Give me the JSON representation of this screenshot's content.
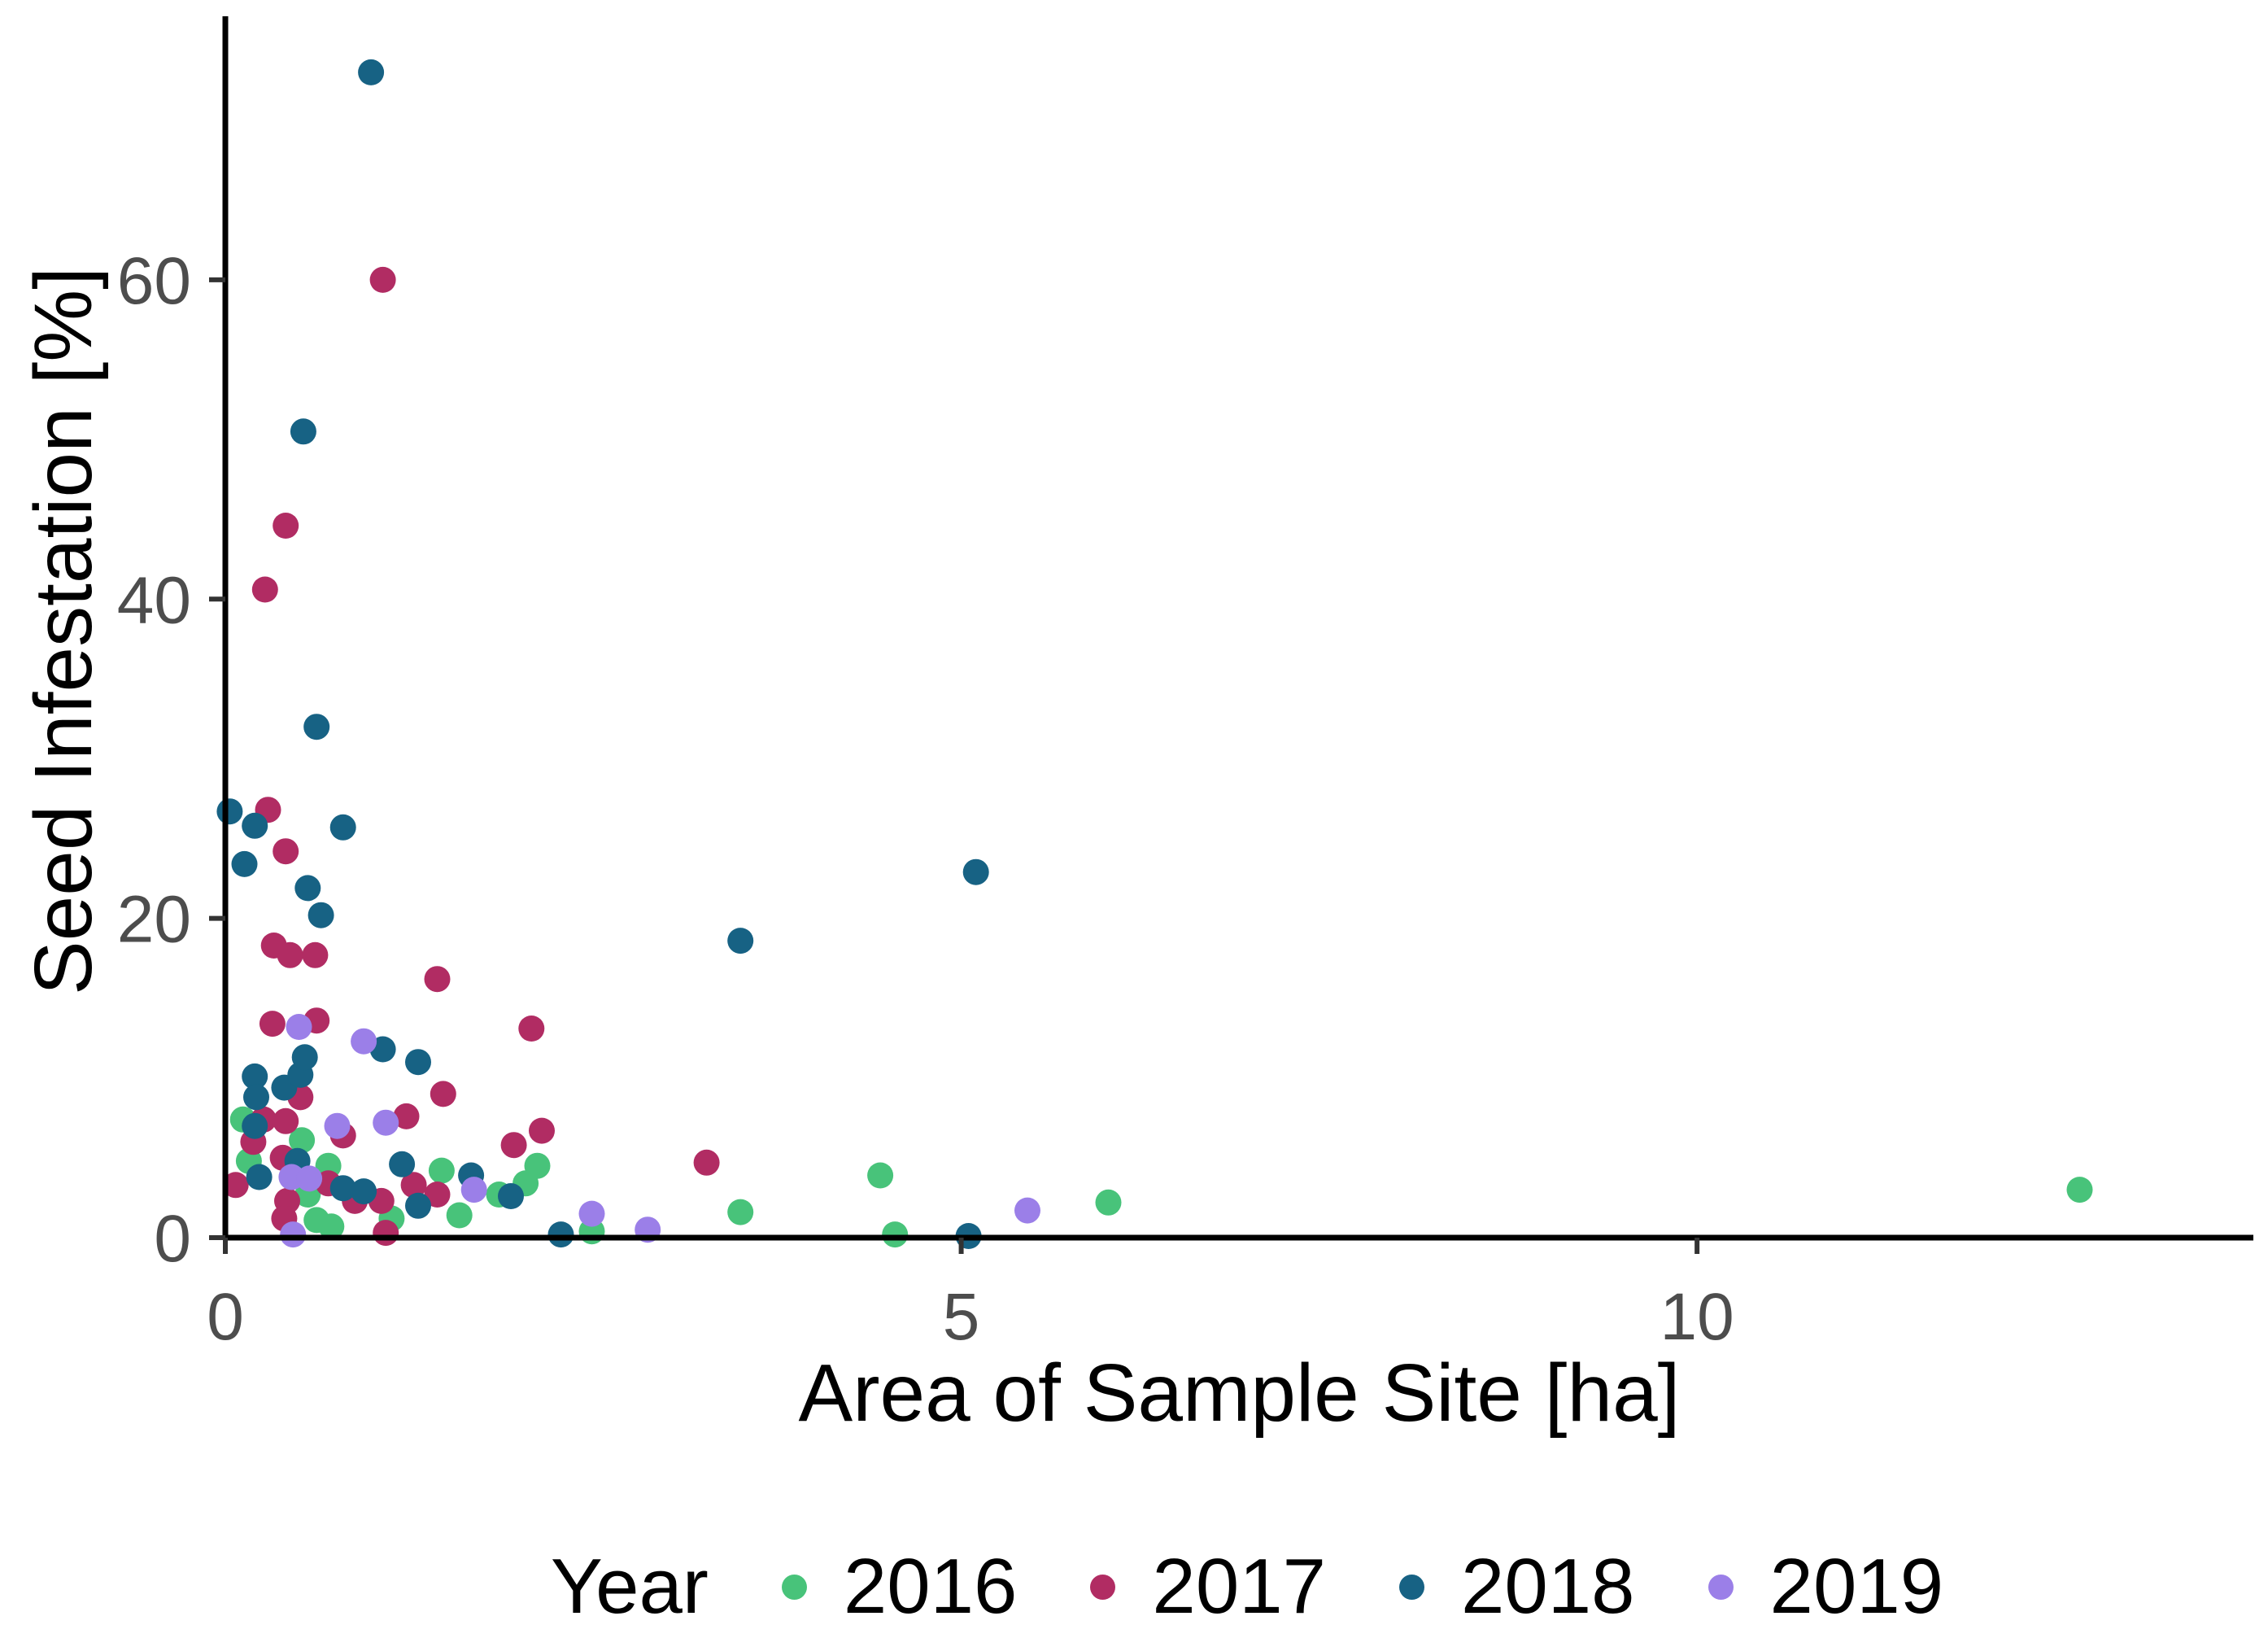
{
  "chart_data": {
    "type": "scatter",
    "title": "",
    "xlabel": "Area of Sample Site [ha]",
    "ylabel": "Seed Infestation [%]",
    "xlim": [
      0,
      13.78
    ],
    "ylim": [
      0,
      76
    ],
    "x_ticks": [
      0,
      5,
      10
    ],
    "y_ticks": [
      0,
      20,
      40,
      60
    ],
    "grid": false,
    "axis_color": "#000000",
    "tick_label_color": "#4d4d4d",
    "legend": {
      "title": "Year",
      "position": "bottom"
    },
    "series": [
      {
        "name": "2016",
        "color": "#48C37A",
        "points": [
          [
            0.12,
            7.4
          ],
          [
            0.16,
            4.8
          ],
          [
            0.52,
            6.1
          ],
          [
            0.56,
            2.7
          ],
          [
            0.62,
            1.1
          ],
          [
            0.72,
            0.7
          ],
          [
            0.7,
            4.5
          ],
          [
            1.13,
            1.2
          ],
          [
            1.47,
            4.2
          ],
          [
            1.59,
            1.4
          ],
          [
            1.86,
            2.7
          ],
          [
            2.04,
            3.4
          ],
          [
            2.12,
            4.5
          ],
          [
            2.49,
            0.4
          ],
          [
            3.5,
            1.6
          ],
          [
            4.45,
            3.9
          ],
          [
            4.55,
            0.2
          ],
          [
            6.0,
            2.2
          ],
          [
            12.6,
            3.0
          ]
        ]
      },
      {
        "name": "2017",
        "color": "#B12C63",
        "points": [
          [
            1.07,
            60
          ],
          [
            0.41,
            44.6
          ],
          [
            0.27,
            40.6
          ],
          [
            0.29,
            26.8
          ],
          [
            0.41,
            24.2
          ],
          [
            0.33,
            18.3
          ],
          [
            0.44,
            17.7
          ],
          [
            0.61,
            17.7
          ],
          [
            1.44,
            16.2
          ],
          [
            0.32,
            13.4
          ],
          [
            0.62,
            13.6
          ],
          [
            2.08,
            13.1
          ],
          [
            1.48,
            9.0
          ],
          [
            0.51,
            8.8
          ],
          [
            0.26,
            7.4
          ],
          [
            0.41,
            7.3
          ],
          [
            1.23,
            7.6
          ],
          [
            0.8,
            6.4
          ],
          [
            0.19,
            6.0
          ],
          [
            2.15,
            6.7
          ],
          [
            1.96,
            5.8
          ],
          [
            0.39,
            5.0
          ],
          [
            0.7,
            3.4
          ],
          [
            1.28,
            3.3
          ],
          [
            0.07,
            3.3
          ],
          [
            1.44,
            2.7
          ],
          [
            0.88,
            2.3
          ],
          [
            1.06,
            2.3
          ],
          [
            0.42,
            2.3
          ],
          [
            0.4,
            1.2
          ],
          [
            1.09,
            0.3
          ],
          [
            3.27,
            4.7
          ]
        ]
      },
      {
        "name": "2018",
        "color": "#176284",
        "points": [
          [
            0.99,
            73
          ],
          [
            0.53,
            50.5
          ],
          [
            0.62,
            32
          ],
          [
            0.03,
            26.7
          ],
          [
            0.8,
            25.7
          ],
          [
            0.2,
            25.8
          ],
          [
            0.13,
            23.4
          ],
          [
            0.56,
            21.9
          ],
          [
            0.65,
            20.2
          ],
          [
            5.1,
            22.9
          ],
          [
            3.5,
            18.6
          ],
          [
            1.07,
            11.8
          ],
          [
            1.31,
            11.0
          ],
          [
            0.2,
            10.1
          ],
          [
            0.21,
            8.8
          ],
          [
            0.4,
            9.4
          ],
          [
            0.51,
            10.2
          ],
          [
            0.54,
            11.3
          ],
          [
            0.2,
            7.0
          ],
          [
            0.23,
            3.8
          ],
          [
            0.49,
            4.8
          ],
          [
            0.8,
            3.1
          ],
          [
            0.94,
            2.9
          ],
          [
            1.2,
            4.6
          ],
          [
            1.31,
            2.0
          ],
          [
            1.67,
            3.9
          ],
          [
            1.94,
            2.6
          ],
          [
            2.28,
            0.2
          ],
          [
            5.05,
            0.1
          ]
        ]
      },
      {
        "name": "2019",
        "color": "#9B7FE8",
        "points": [
          [
            0.5,
            13.2
          ],
          [
            0.94,
            12.3
          ],
          [
            0.76,
            7.0
          ],
          [
            1.09,
            7.2
          ],
          [
            0.45,
            3.8
          ],
          [
            0.57,
            3.7
          ],
          [
            0.46,
            0.2
          ],
          [
            1.69,
            3.0
          ],
          [
            2.49,
            1.5
          ],
          [
            2.87,
            0.5
          ],
          [
            5.45,
            1.7
          ]
        ]
      }
    ]
  }
}
